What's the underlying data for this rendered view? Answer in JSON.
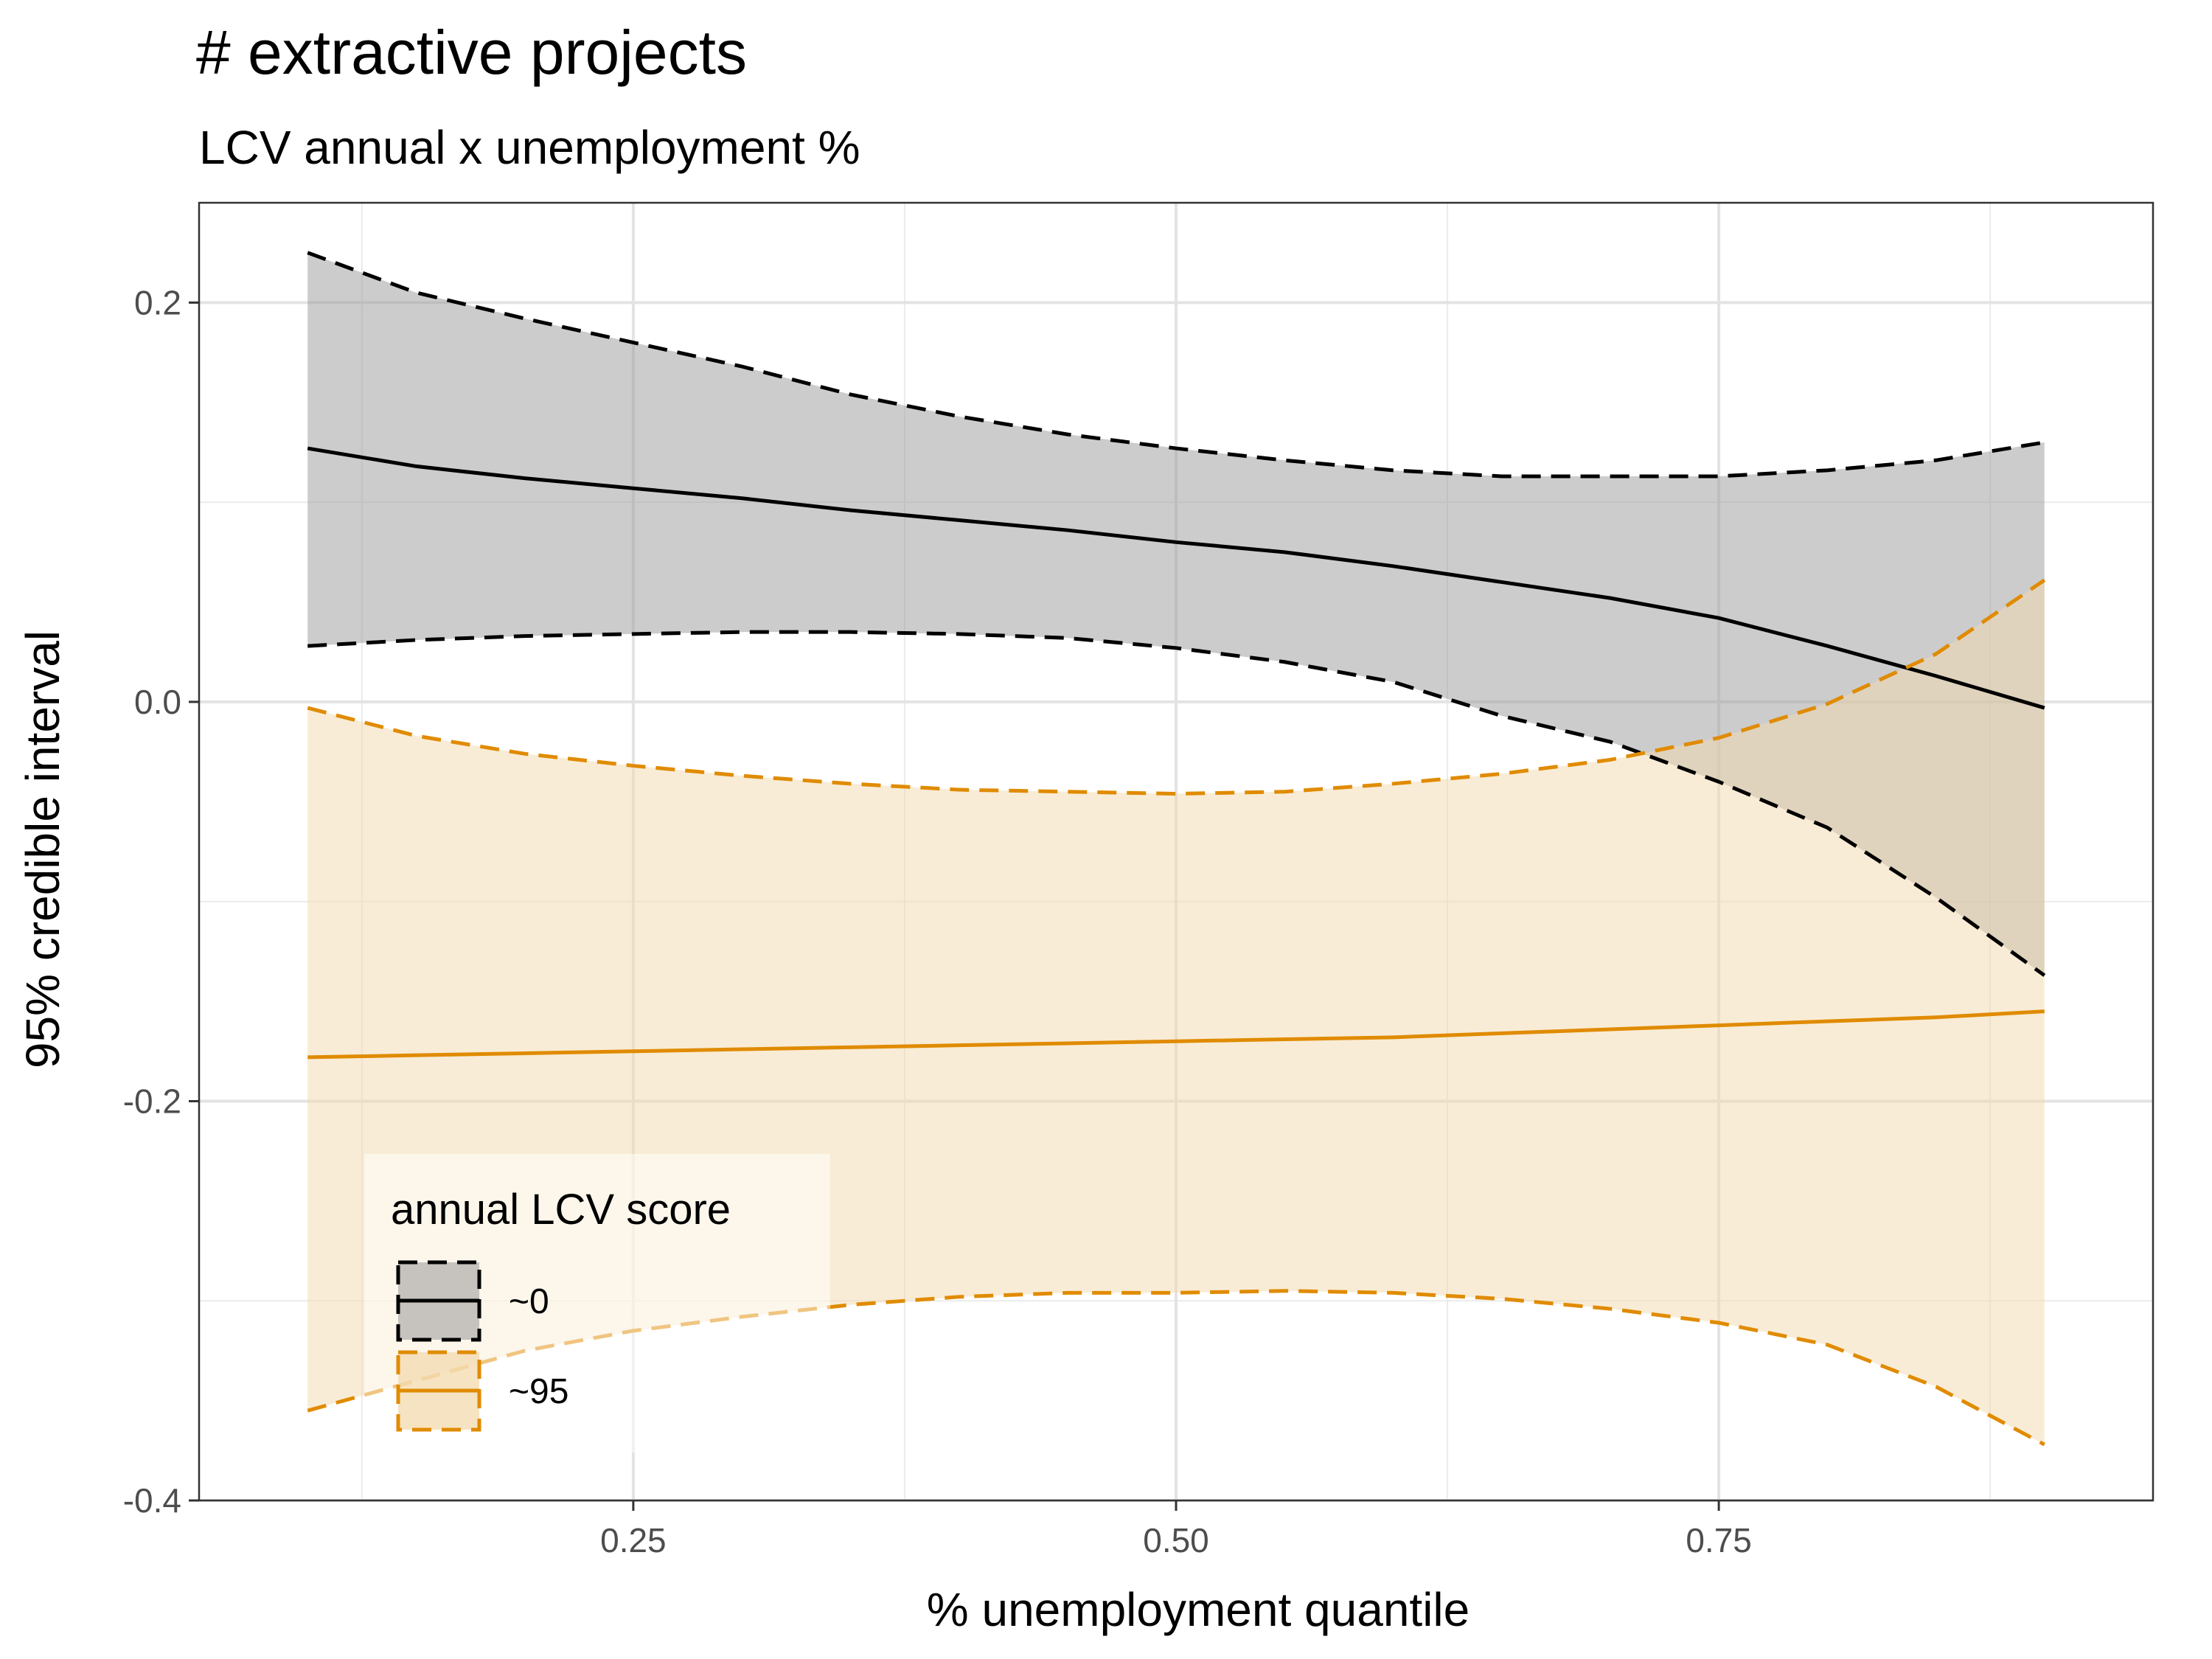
{
  "chart_data": {
    "type": "line",
    "title": "# extractive projects",
    "subtitle": "LCV annual x unemployment %",
    "xlabel": "% unemployment quantile",
    "ylabel": "95% credible interval",
    "xlim": [
      0.05,
      0.95
    ],
    "ylim": [
      -0.4,
      0.25
    ],
    "x_ticks": [
      0.25,
      0.5,
      0.75
    ],
    "x_tick_labels": [
      "0.25",
      "0.50",
      "0.75"
    ],
    "y_ticks": [
      -0.4,
      -0.2,
      0.0,
      0.2
    ],
    "y_tick_labels": [
      "-0.4",
      "-0.2",
      "0.0",
      "0.2"
    ],
    "grid": true,
    "legend": {
      "title": "annual LCV score",
      "position": "bottom-left"
    },
    "x": [
      0.1,
      0.15,
      0.2,
      0.25,
      0.3,
      0.35,
      0.4,
      0.45,
      0.5,
      0.55,
      0.6,
      0.65,
      0.7,
      0.75,
      0.8,
      0.85,
      0.9
    ],
    "series": [
      {
        "name": "~0",
        "color": "#000000",
        "fill": "#999999",
        "estimate": [
          0.127,
          0.118,
          0.112,
          0.107,
          0.102,
          0.096,
          0.091,
          0.086,
          0.08,
          0.075,
          0.068,
          0.06,
          0.052,
          0.042,
          0.028,
          0.013,
          -0.003
        ],
        "lower": [
          0.028,
          0.031,
          0.033,
          0.034,
          0.035,
          0.035,
          0.034,
          0.032,
          0.027,
          0.02,
          0.01,
          -0.007,
          -0.02,
          -0.04,
          -0.063,
          -0.098,
          -0.137
        ],
        "upper": [
          0.225,
          0.205,
          0.192,
          0.18,
          0.168,
          0.154,
          0.143,
          0.134,
          0.127,
          0.121,
          0.116,
          0.113,
          0.113,
          0.113,
          0.116,
          0.121,
          0.13
        ]
      },
      {
        "name": "~95",
        "color": "#E08B00",
        "fill": "#F3D9AE",
        "estimate": [
          -0.178,
          -0.177,
          -0.176,
          -0.175,
          -0.174,
          -0.173,
          -0.172,
          -0.171,
          -0.17,
          -0.169,
          -0.168,
          -0.166,
          -0.164,
          -0.162,
          -0.16,
          -0.158,
          -0.155
        ],
        "lower": [
          -0.355,
          -0.34,
          -0.325,
          -0.315,
          -0.308,
          -0.302,
          -0.298,
          -0.296,
          -0.296,
          -0.295,
          -0.296,
          -0.299,
          -0.304,
          -0.311,
          -0.322,
          -0.343,
          -0.372
        ],
        "upper": [
          -0.003,
          -0.017,
          -0.026,
          -0.032,
          -0.037,
          -0.041,
          -0.044,
          -0.045,
          -0.046,
          -0.045,
          -0.041,
          -0.036,
          -0.029,
          -0.018,
          -0.001,
          0.024,
          0.061
        ]
      }
    ]
  }
}
